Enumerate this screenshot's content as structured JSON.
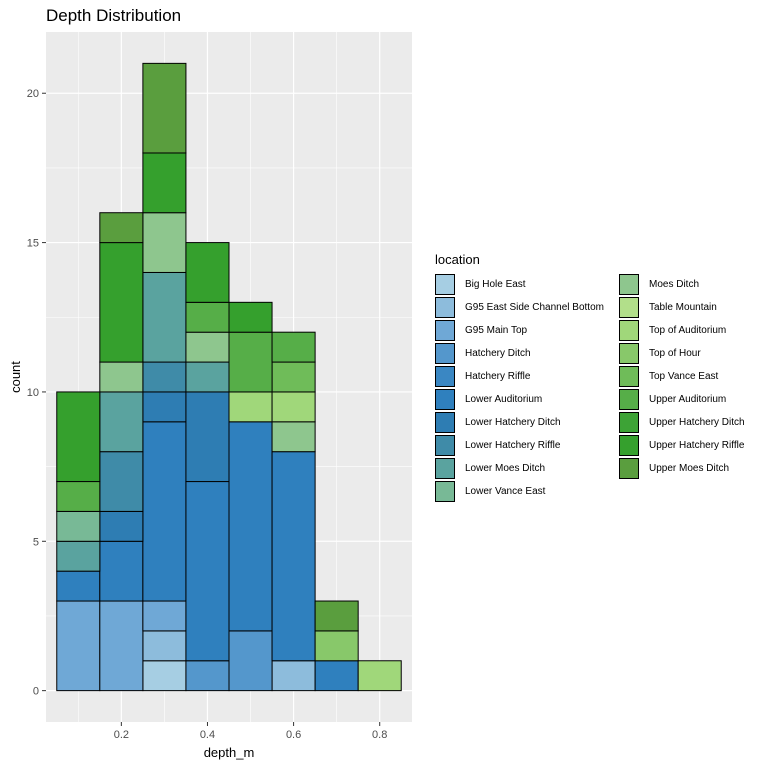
{
  "chart_data": {
    "type": "bar",
    "stacked": true,
    "title": "Depth Distribution",
    "xlabel": "depth_m",
    "ylabel": "count",
    "xlim": [
      0.025,
      0.875
    ],
    "ylim": [
      -1.05,
      22.05
    ],
    "x_ticks": [
      0.2,
      0.4,
      0.6,
      0.8
    ],
    "y_ticks": [
      0,
      5,
      10,
      15,
      20
    ],
    "bin_width": 0.1,
    "bin_centers": [
      0.1,
      0.2,
      0.3,
      0.4,
      0.5,
      0.6,
      0.7,
      0.8
    ],
    "legend_title": "location",
    "legend_placement": "right",
    "grid": true,
    "panel_background": "#ebebeb",
    "series": [
      {
        "name": "Big Hole East",
        "color": "#a6cee3",
        "values": [
          0,
          0,
          1,
          0,
          0,
          0,
          0,
          0
        ]
      },
      {
        "name": "G95 East Side Channel Bottom",
        "color": "#8dbcdc",
        "values": [
          0,
          0,
          1,
          0,
          0,
          1,
          0,
          0
        ]
      },
      {
        "name": "G95 Main Top",
        "color": "#6fa8d6",
        "values": [
          3,
          3,
          1,
          0,
          0,
          0,
          0,
          0
        ]
      },
      {
        "name": "Hatchery Ditch",
        "color": "#5497cc",
        "values": [
          0,
          0,
          0,
          1,
          2,
          0,
          0,
          0
        ]
      },
      {
        "name": "Hatchery Riffle",
        "color": "#3a87c3",
        "values": [
          0,
          0,
          0,
          0,
          0,
          0,
          0,
          0
        ]
      },
      {
        "name": "Lower Auditorium",
        "color": "#2f80be",
        "values": [
          1,
          2,
          6,
          6,
          7,
          7,
          1,
          0
        ]
      },
      {
        "name": "Lower Hatchery Ditch",
        "color": "#2e7db3",
        "values": [
          0,
          1,
          1,
          3,
          0,
          0,
          0,
          0
        ]
      },
      {
        "name": "Lower Hatchery Riffle",
        "color": "#3f8ba8",
        "values": [
          0,
          2,
          1,
          0,
          0,
          0,
          0,
          0
        ]
      },
      {
        "name": "Lower Moes Ditch",
        "color": "#5aa39f",
        "values": [
          1,
          2,
          3,
          1,
          0,
          0,
          0,
          0
        ]
      },
      {
        "name": "Lower Vance East",
        "color": "#78b996",
        "values": [
          1,
          0,
          0,
          0,
          0,
          0,
          0,
          0
        ]
      },
      {
        "name": "Moes Ditch",
        "color": "#8ec68e",
        "values": [
          0,
          1,
          2,
          1,
          0,
          1,
          0,
          0
        ]
      },
      {
        "name": "Table Mountain",
        "color": "#b2df8a",
        "values": [
          0,
          0,
          0,
          0,
          0,
          0,
          0,
          0
        ]
      },
      {
        "name": "Top of Auditorium",
        "color": "#a0d77a",
        "values": [
          0,
          0,
          0,
          0,
          1,
          1,
          0,
          1
        ]
      },
      {
        "name": "Top of Hour",
        "color": "#88c86a",
        "values": [
          0,
          0,
          0,
          0,
          0,
          0,
          1,
          0
        ]
      },
      {
        "name": "Top Vance East",
        "color": "#6fbc59",
        "values": [
          0,
          0,
          0,
          0,
          0,
          1,
          0,
          0
        ]
      },
      {
        "name": "Upper Auditorium",
        "color": "#56ae48",
        "values": [
          1,
          0,
          0,
          1,
          2,
          1,
          0,
          0
        ]
      },
      {
        "name": "Upper Hatchery Ditch",
        "color": "#3da336",
        "values": [
          0,
          0,
          0,
          0,
          0,
          0,
          0,
          0
        ]
      },
      {
        "name": "Upper Hatchery Riffle",
        "color": "#35a02d",
        "values": [
          3,
          4,
          2,
          2,
          1,
          0,
          0,
          0
        ]
      },
      {
        "name": "Upper Moes Ditch",
        "color": "#5a9e3e",
        "values": [
          0,
          1,
          3,
          0,
          0,
          0,
          1,
          0
        ]
      }
    ]
  }
}
